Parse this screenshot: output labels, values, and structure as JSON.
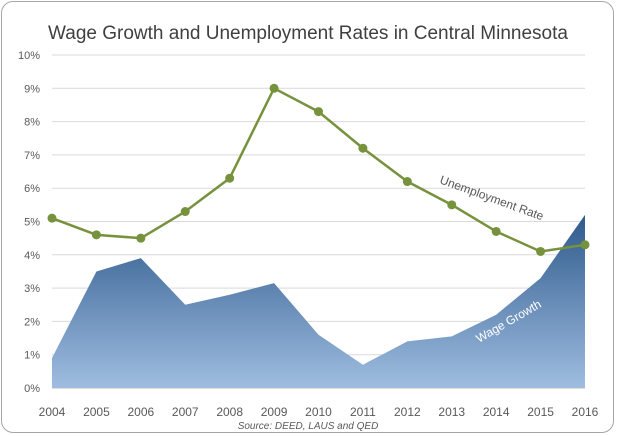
{
  "chart_data": {
    "type": "area",
    "title": "Wage Growth and Unemployment Rates in Central Minnesota",
    "source": "Source: DEED, LAUS and QED",
    "x": [
      "2004",
      "2005",
      "2006",
      "2007",
      "2008",
      "2009",
      "2010",
      "2011",
      "2012",
      "2013",
      "2014",
      "2015",
      "2016"
    ],
    "yticks": [
      "0%",
      "1%",
      "2%",
      "3%",
      "4%",
      "5%",
      "6%",
      "7%",
      "8%",
      "9%",
      "10%"
    ],
    "ylim": [
      0,
      10
    ],
    "grid": true,
    "series": [
      {
        "name": "Wage Growth",
        "type": "area",
        "values": [
          0.9,
          3.5,
          3.9,
          2.5,
          2.8,
          3.15,
          1.6,
          0.7,
          1.4,
          1.55,
          2.2,
          3.3,
          5.2
        ],
        "color_top": "#2e5a8c",
        "color_bottom": "#9fbde0"
      },
      {
        "name": "Unemployment Rate",
        "type": "line",
        "values": [
          5.1,
          4.6,
          4.5,
          5.3,
          6.3,
          9.0,
          8.3,
          7.2,
          6.2,
          5.5,
          4.7,
          4.1,
          4.3
        ],
        "color": "#76923c"
      }
    ]
  }
}
